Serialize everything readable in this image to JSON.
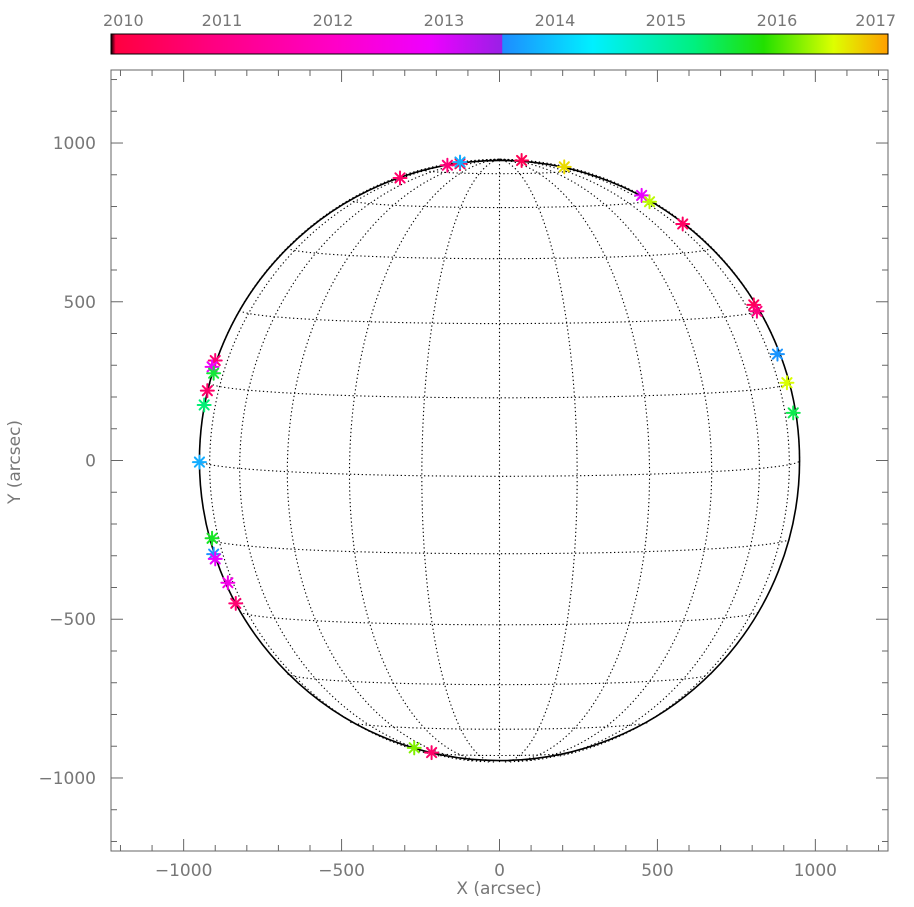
{
  "chart_data": {
    "type": "scatter",
    "title": "",
    "xlabel": "X (arcsec)",
    "ylabel": "Y (arcsec)",
    "xlim": [
      -1230,
      1230
    ],
    "ylim": [
      -1230,
      1230
    ],
    "x_ticks": [
      -1000,
      -500,
      0,
      500,
      1000
    ],
    "x_tick_labels": [
      "−1000",
      "−500",
      "0",
      "500",
      "1000"
    ],
    "y_ticks": [
      -1000,
      -500,
      0,
      500,
      1000
    ],
    "y_tick_labels": [
      "−1000",
      "−500",
      "0",
      "500",
      "1000"
    ],
    "grid": false,
    "disk": {
      "radius": 950,
      "grid_step_deg": 15,
      "b0_deg": 3,
      "grid_style": "dotted"
    },
    "colorbar": {
      "labels": [
        "2010",
        "2011",
        "2012",
        "2013",
        "2014",
        "2015",
        "2016",
        "2017"
      ],
      "range": [
        2010,
        2017
      ],
      "placement": "top"
    },
    "marker": "asterisk",
    "points": [
      {
        "x": -315,
        "y": 890,
        "t": 2010.6
      },
      {
        "x": -165,
        "y": 930,
        "t": 2010.8
      },
      {
        "x": -125,
        "y": 935,
        "t": 2010.2
      },
      {
        "x": -125,
        "y": 940,
        "t": 2013.8
      },
      {
        "x": 70,
        "y": 945,
        "t": 2010.3
      },
      {
        "x": 205,
        "y": 925,
        "t": 2016.7
      },
      {
        "x": 450,
        "y": 835,
        "t": 2012.9
      },
      {
        "x": 475,
        "y": 815,
        "t": 2016.4
      },
      {
        "x": 580,
        "y": 745,
        "t": 2010.5
      },
      {
        "x": 805,
        "y": 490,
        "t": 2010.4
      },
      {
        "x": 815,
        "y": 470,
        "t": 2010.9
      },
      {
        "x": 880,
        "y": 335,
        "t": 2013.6
      },
      {
        "x": 910,
        "y": 245,
        "t": 2016.5
      },
      {
        "x": 930,
        "y": 150,
        "t": 2015.5
      },
      {
        "x": -900,
        "y": 315,
        "t": 2010.7
      },
      {
        "x": -910,
        "y": 295,
        "t": 2012.8
      },
      {
        "x": -905,
        "y": 275,
        "t": 2015.6
      },
      {
        "x": -925,
        "y": 220,
        "t": 2010.6
      },
      {
        "x": -935,
        "y": 175,
        "t": 2015.3
      },
      {
        "x": -950,
        "y": -5,
        "t": 2013.8
      },
      {
        "x": -910,
        "y": -245,
        "t": 2015.7
      },
      {
        "x": -905,
        "y": -295,
        "t": 2013.6
      },
      {
        "x": -900,
        "y": -310,
        "t": 2012.9
      },
      {
        "x": -860,
        "y": -385,
        "t": 2012.5
      },
      {
        "x": -835,
        "y": -450,
        "t": 2010.7
      },
      {
        "x": -270,
        "y": -905,
        "t": 2016.2
      },
      {
        "x": -215,
        "y": -920,
        "t": 2010.6
      }
    ]
  }
}
